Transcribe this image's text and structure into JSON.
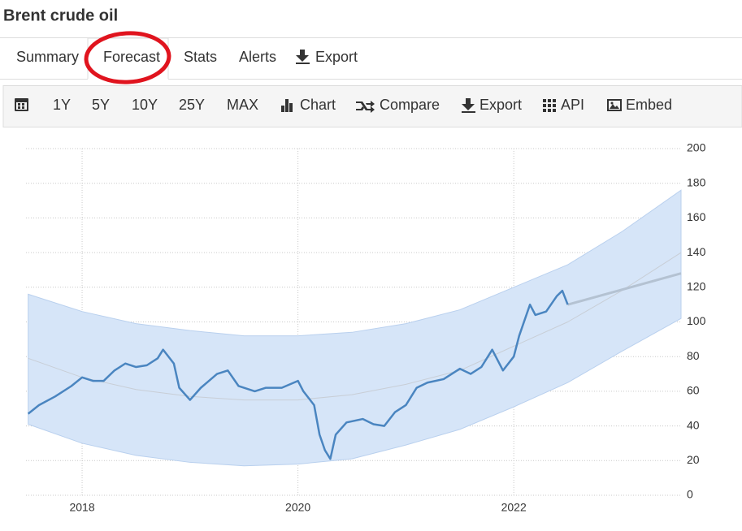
{
  "header": {
    "title": "Brent crude oil"
  },
  "tabs": [
    "Summary",
    "Forecast",
    "Stats",
    "Alerts",
    "Export"
  ],
  "toolbar": [
    "1Y",
    "5Y",
    "10Y",
    "25Y",
    "MAX",
    "Chart",
    "Compare",
    "Export",
    "API",
    "Embed"
  ],
  "chart_data": {
    "type": "line",
    "xlim": [
      2017.48,
      2023.55
    ],
    "xticks": [
      2018,
      2020,
      2022
    ],
    "ylim": [
      0,
      200
    ],
    "yticks": [
      0,
      20,
      40,
      60,
      80,
      100,
      120,
      140,
      160,
      180,
      200
    ],
    "grid": true,
    "band": {
      "color": "#d6e5f8",
      "x": [
        2017.5,
        2018,
        2018.5,
        2019,
        2019.5,
        2020,
        2020.5,
        2021,
        2021.5,
        2022,
        2022.5,
        2023,
        2023.55
      ],
      "upper": [
        116,
        106,
        99,
        95,
        92,
        92,
        94,
        99,
        107,
        120,
        133,
        152,
        176
      ],
      "lower": [
        41,
        30,
        23,
        19,
        17,
        18,
        21,
        29,
        38,
        51,
        65,
        83,
        102
      ]
    },
    "series": [
      {
        "color": "#c8ced6",
        "x": [
          2017.5,
          2018,
          2018.5,
          2019,
          2019.5,
          2020,
          2020.5,
          2021,
          2021.5,
          2022,
          2022.5,
          2023,
          2023.55
        ],
        "values": [
          79,
          68,
          61,
          57,
          55,
          55,
          58,
          64,
          72,
          86,
          100,
          118,
          140
        ]
      },
      {
        "color": "#b4c2d2",
        "x": [
          2022.5,
          2023.55
        ],
        "values": [
          110,
          128
        ]
      },
      {
        "color": "#4a85c0",
        "x": [
          2017.5,
          2017.6,
          2017.75,
          2017.9,
          2018.0,
          2018.1,
          2018.2,
          2018.3,
          2018.4,
          2018.5,
          2018.6,
          2018.7,
          2018.75,
          2018.85,
          2018.9,
          2019.0,
          2019.1,
          2019.25,
          2019.35,
          2019.45,
          2019.6,
          2019.7,
          2019.85,
          2020.0,
          2020.05,
          2020.15,
          2020.2,
          2020.25,
          2020.3,
          2020.35,
          2020.45,
          2020.6,
          2020.7,
          2020.8,
          2020.9,
          2021.0,
          2021.1,
          2021.2,
          2021.35,
          2021.5,
          2021.6,
          2021.7,
          2021.8,
          2021.9,
          2022.0,
          2022.05,
          2022.15,
          2022.2,
          2022.3,
          2022.4,
          2022.45,
          2022.5
        ],
        "values": [
          47,
          52,
          57,
          63,
          68,
          66,
          66,
          72,
          76,
          74,
          75,
          79,
          84,
          76,
          62,
          55,
          62,
          70,
          72,
          63,
          60,
          62,
          62,
          66,
          60,
          52,
          35,
          26,
          21,
          35,
          42,
          44,
          41,
          40,
          48,
          52,
          62,
          65,
          67,
          73,
          70,
          74,
          84,
          72,
          80,
          92,
          110,
          104,
          106,
          115,
          118,
          110
        ]
      }
    ]
  }
}
